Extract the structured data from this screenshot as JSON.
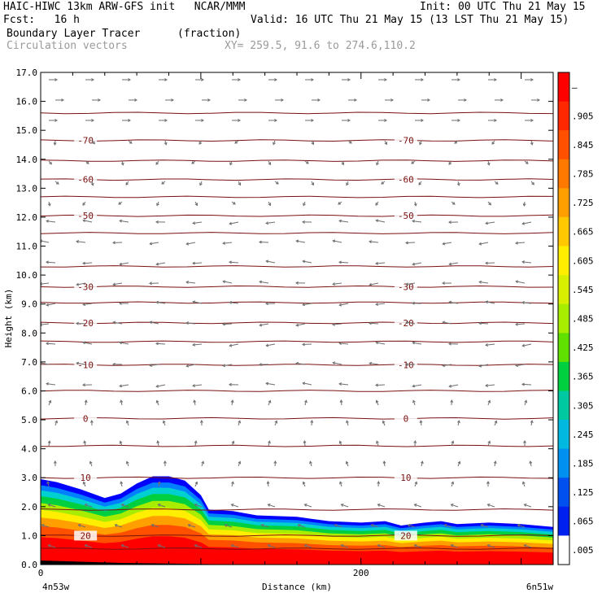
{
  "header": {
    "line1_left": "HAIC-HIWC 13km ARW-GFS init   NCAR/MMM",
    "line1_right": "Init: 00 UTC Thu 21 May 15",
    "line2_left": "Fcst:   16 h",
    "line2_right": "Valid: 16 UTC Thu 21 May 15 (13 LST Thu 21 May 15)",
    "line3_left": "Boundary Layer Tracer",
    "line3_mid": "(fraction)",
    "line4_left": "Circulation vectors",
    "line4_mid": "XY= 259.5, 91.6 to 274.6,110.2"
  },
  "chart_data": {
    "type": "heatmap",
    "title": "Boundary Layer Tracer",
    "units": "(fraction)",
    "xlabel": "Distance (km)",
    "ylabel": "Height (km)",
    "xlim": [
      0,
      320
    ],
    "ylim": [
      0,
      17
    ],
    "x_ticks": [
      0,
      200
    ],
    "x_end_labels": {
      "left": "4n53w",
      "right": "6n51w"
    },
    "y_ticks": [
      "0.0",
      "1.0",
      "2.0",
      "3.0",
      "4.0",
      "5.0",
      "6.0",
      "7.0",
      "8.0",
      "9.0",
      "10.0",
      "11.0",
      "12.0",
      "13.0",
      "14.0",
      "15.0",
      "16.0",
      "17.0"
    ],
    "colorbar": {
      "labels": [
        "–",
        ".905",
        ".845",
        ".785",
        ".725",
        ".665",
        ".605",
        ".545",
        ".485",
        ".425",
        ".365",
        ".305",
        ".245",
        ".185",
        ".125",
        ".065",
        ".005"
      ],
      "colors": [
        "#ff0000",
        "#ff2800",
        "#ff5000",
        "#ff7800",
        "#ffa000",
        "#ffc800",
        "#ffee00",
        "#d8f000",
        "#a8ec00",
        "#60e000",
        "#00d040",
        "#00c8a0",
        "#00b8e0",
        "#0090f0",
        "#0050f0",
        "#0020f0",
        "#ffffff"
      ]
    },
    "tracer_top_km": {
      "x": [
        0,
        10,
        25,
        40,
        50,
        60,
        70,
        80,
        90,
        100,
        105,
        120,
        135,
        160,
        180,
        200,
        215,
        225,
        240,
        250,
        260,
        280,
        300,
        320
      ],
      "y": [
        2.95,
        2.85,
        2.6,
        2.3,
        2.45,
        2.8,
        3.05,
        3.05,
        2.9,
        2.4,
        1.9,
        1.85,
        1.7,
        1.65,
        1.5,
        1.45,
        1.5,
        1.35,
        1.45,
        1.5,
        1.4,
        1.45,
        1.4,
        1.3
      ]
    },
    "temperature_contours_C": [
      {
        "label": "-70",
        "height_km": 14.65
      },
      {
        "label": "-60",
        "height_km": 13.3
      },
      {
        "label": "-50",
        "height_km": 12.05
      },
      {
        "label": "-30",
        "height_km": 9.6
      },
      {
        "label": "-20",
        "height_km": 8.35
      },
      {
        "label": "-10",
        "height_km": 6.9
      },
      {
        "label": "0",
        "height_km": 5.05
      },
      {
        "label": "10",
        "height_km": 3.0
      },
      {
        "label": "20",
        "height_km": 1.0
      }
    ],
    "extra_contour_heights_km": [
      15.6,
      13.95,
      12.7,
      11.45,
      10.3,
      9.05,
      7.7,
      6.0,
      4.1,
      1.9,
      0.55
    ],
    "grid": false
  }
}
